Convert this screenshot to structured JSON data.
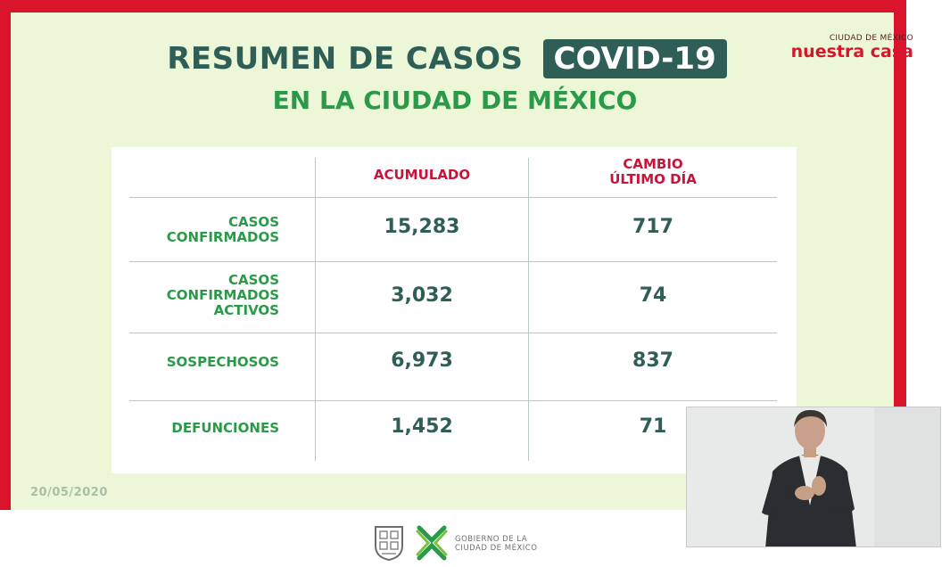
{
  "slide": {
    "title_main": "RESUMEN DE CASOS",
    "title_badge": "COVID-19",
    "subtitle": "EN LA CIUDAD DE MÉXICO",
    "date": "20/05/2020"
  },
  "table": {
    "col_accumulated": "ACUMULADO",
    "col_change_line1": "CAMBIO",
    "col_change_line2": "ÚLTIMO DÍA",
    "rows": [
      {
        "label_lines": [
          "CASOS",
          "CONFIRMADOS",
          ""
        ],
        "accumulated": "15,283",
        "change": "717"
      },
      {
        "label_lines": [
          "CASOS",
          "CONFIRMADOS",
          "ACTIVOS"
        ],
        "accumulated": "3,032",
        "change": "74"
      },
      {
        "label_lines": [
          "SOSPECHOSOS",
          "",
          ""
        ],
        "accumulated": "6,973",
        "change": "837"
      },
      {
        "label_lines": [
          "DEFUNCIONES",
          "",
          ""
        ],
        "accumulated": "1,452",
        "change": "71"
      }
    ]
  },
  "brand": {
    "small": "CIUDAD DE MÉXICO",
    "big": "nuestra casa"
  },
  "footer": {
    "gov_line1": "GOBIERNO DE LA",
    "gov_line2": "CIUDAD DE MÉXICO"
  },
  "colors": {
    "frame_red": "#d9142b",
    "slide_green": "#ecf7d8",
    "title_dark": "#2f5e56",
    "label_green": "#2a9a49",
    "header_red": "#c8143a"
  },
  "icons": [
    "coat-of-arms-icon",
    "cdmx-logo-icon"
  ]
}
